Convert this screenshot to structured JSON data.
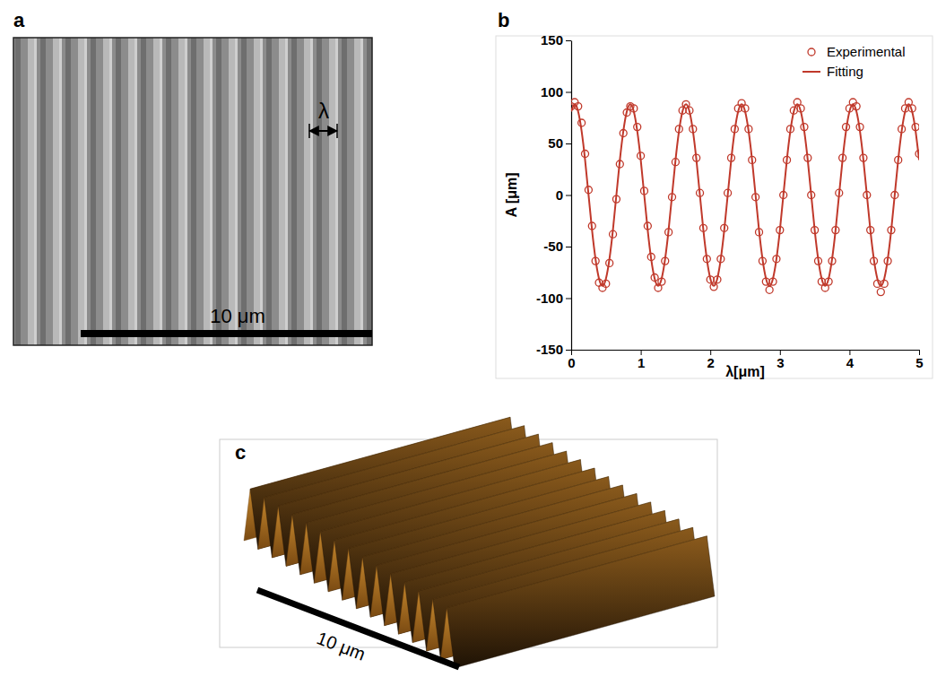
{
  "panel_letters": [
    "a",
    "b",
    "c"
  ],
  "panel_a": {
    "scale_bar": "10 μm",
    "period_label": "λ"
  },
  "chart_data": {
    "type": "line",
    "x_label": "λ[μm]",
    "y_label": "A [μm]",
    "xlim": [
      0,
      5
    ],
    "xticks": [
      0,
      1,
      2,
      3,
      4,
      5
    ],
    "ylim": [
      -150,
      150
    ],
    "yticks": [
      -150,
      -100,
      -50,
      0,
      50,
      100,
      150
    ],
    "legend": "top-right",
    "x": [
      0,
      0.05,
      0.1,
      0.15,
      0.2,
      0.25,
      0.3,
      0.35,
      0.4,
      0.45,
      0.5,
      0.55,
      0.6,
      0.65,
      0.7,
      0.75,
      0.8,
      0.85,
      0.9,
      0.95,
      1,
      1.05,
      1.1,
      1.15,
      1.2,
      1.25,
      1.3,
      1.35,
      1.4,
      1.45,
      1.5,
      1.55,
      1.6,
      1.65,
      1.7,
      1.75,
      1.8,
      1.85,
      1.9,
      1.95,
      2,
      2.05,
      2.1,
      2.15,
      2.2,
      2.25,
      2.3,
      2.35,
      2.4,
      2.45,
      2.5,
      2.55,
      2.6,
      2.65,
      2.7,
      2.75,
      2.8,
      2.85,
      2.9,
      2.95,
      3,
      3.05,
      3.1,
      3.15,
      3.2,
      3.25,
      3.3,
      3.35,
      3.4,
      3.45,
      3.5,
      3.55,
      3.6,
      3.65,
      3.7,
      3.75,
      3.8,
      3.85,
      3.9,
      3.95,
      4,
      4.05,
      4.1,
      4.15,
      4.2,
      4.25,
      4.3,
      4.35,
      4.4,
      4.45,
      4.5,
      4.55,
      4.6,
      4.65,
      4.7,
      4.75,
      4.8,
      4.85,
      4.9,
      4.95,
      5
    ],
    "series": [
      {
        "name": "Experimental",
        "type": "scatter",
        "marker": "circle",
        "color": "#c0392b",
        "values": [
          86,
          90,
          86,
          70,
          40,
          5,
          -30,
          -64,
          -85,
          -90,
          -86,
          -66,
          -38,
          -4,
          30,
          60,
          80,
          86,
          84,
          66,
          38,
          4,
          -30,
          -60,
          -80,
          -90,
          -84,
          -64,
          -36,
          -2,
          32,
          64,
          82,
          88,
          82,
          64,
          36,
          2,
          -32,
          -62,
          -82,
          -89,
          -82,
          -62,
          -32,
          2,
          36,
          64,
          84,
          89,
          84,
          64,
          34,
          -2,
          -36,
          -64,
          -84,
          -92,
          -84,
          -62,
          -34,
          0,
          34,
          64,
          82,
          90,
          84,
          66,
          36,
          0,
          -34,
          -64,
          -84,
          -90,
          -84,
          -64,
          -34,
          2,
          36,
          66,
          84,
          90,
          86,
          66,
          36,
          0,
          -34,
          -64,
          -86,
          -94,
          -86,
          -64,
          -34,
          0,
          34,
          64,
          84,
          90,
          84,
          66,
          40
        ]
      },
      {
        "name": "Fitting",
        "type": "line",
        "line_style": "solid",
        "color": "#c0392b",
        "values": [
          81,
          88,
          81,
          62,
          34,
          0,
          -34,
          -62,
          -81,
          -88,
          -81,
          -62,
          -34,
          0,
          34,
          62,
          81,
          88,
          81,
          62,
          34,
          0,
          -34,
          -62,
          -81,
          -88,
          -81,
          -62,
          -34,
          0,
          34,
          62,
          81,
          88,
          81,
          62,
          34,
          0,
          -34,
          -62,
          -81,
          -88,
          -81,
          -62,
          -34,
          0,
          34,
          62,
          81,
          88,
          81,
          62,
          34,
          0,
          -34,
          -62,
          -81,
          -88,
          -81,
          -62,
          -34,
          0,
          34,
          62,
          81,
          88,
          81,
          62,
          34,
          0,
          -34,
          -62,
          -81,
          -88,
          -81,
          -62,
          -34,
          0,
          34,
          62,
          81,
          88,
          81,
          62,
          34,
          0,
          -34,
          -62,
          -81,
          -88,
          -81,
          -62,
          -34,
          0,
          34,
          62,
          81,
          88,
          81,
          62,
          34
        ]
      }
    ]
  },
  "panel_c": {
    "scale_bar": "10 μm"
  }
}
